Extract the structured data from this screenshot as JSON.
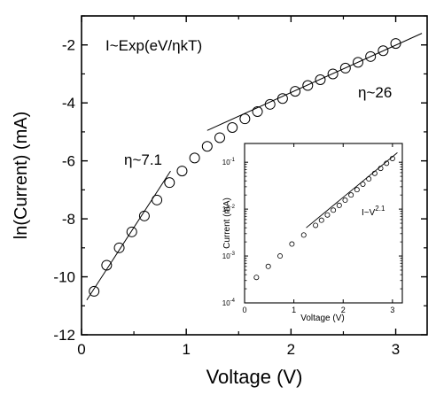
{
  "chart_data": [
    {
      "type": "scatter",
      "panel": "main",
      "xlabel": "Voltage (V)",
      "ylabel": "ln(Current) (mA)",
      "xlim": [
        0,
        3.3
      ],
      "ylim": [
        -12,
        -1
      ],
      "xticks": [
        "0",
        "1",
        "2",
        "3"
      ],
      "yticks": [
        "-12",
        "-10",
        "-8",
        "-6",
        "-4",
        "-2"
      ],
      "grid": false,
      "marker": "open-circle",
      "series": [
        {
          "x": [
            0.12,
            0.24,
            0.36,
            0.48,
            0.6,
            0.72,
            0.84,
            0.96,
            1.08,
            1.2,
            1.32,
            1.44,
            1.56,
            1.68,
            1.8,
            1.92,
            2.04,
            2.16,
            2.28,
            2.4,
            2.52,
            2.64,
            2.76,
            2.88,
            3.0
          ],
          "y": [
            -10.5,
            -9.6,
            -9.0,
            -8.45,
            -7.9,
            -7.35,
            -6.75,
            -6.35,
            -5.9,
            -5.5,
            -5.2,
            -4.85,
            -4.55,
            -4.3,
            -4.05,
            -3.85,
            -3.6,
            -3.4,
            -3.2,
            -3.0,
            -2.8,
            -2.6,
            -2.4,
            -2.2,
            -1.95
          ]
        }
      ],
      "fit_lines": [
        {
          "label": "η~7.1",
          "x": [
            0.05,
            0.85
          ],
          "y": [
            -10.8,
            -6.35
          ]
        },
        {
          "label": "η~26",
          "x": [
            1.2,
            3.25
          ],
          "y": [
            -4.95,
            -1.6
          ]
        }
      ],
      "annotations": [
        "I~Exp(eV/ηkT)",
        "η~7.1",
        "η~26"
      ]
    },
    {
      "type": "scatter",
      "panel": "inset",
      "xlabel": "Voltage (V)",
      "ylabel": "Current (mA)",
      "xlim": [
        0,
        3.2
      ],
      "ylim_log10": [
        -4,
        -0.6
      ],
      "yscale": "log",
      "xticks": [
        "0",
        "1",
        "2",
        "3"
      ],
      "yticks": [
        "10-4",
        "10-3",
        "10-2",
        "10-1"
      ],
      "marker": "open-circle",
      "series": [
        {
          "x": [
            0.24,
            0.48,
            0.72,
            0.96,
            1.2,
            1.44,
            1.56,
            1.68,
            1.8,
            1.92,
            2.04,
            2.16,
            2.28,
            2.4,
            2.52,
            2.64,
            2.76,
            2.88,
            3.0
          ],
          "y": [
            0.00035,
            0.0006,
            0.001,
            0.0018,
            0.0028,
            0.0045,
            0.0058,
            0.0075,
            0.0095,
            0.012,
            0.0155,
            0.02,
            0.026,
            0.034,
            0.044,
            0.058,
            0.074,
            0.095,
            0.12
          ]
        }
      ],
      "fit_line": {
        "label": "I~V",
        "exponent": "2.1",
        "x": [
          1.25,
          3.1
        ],
        "y": [
          0.004,
          0.16
        ]
      }
    }
  ]
}
